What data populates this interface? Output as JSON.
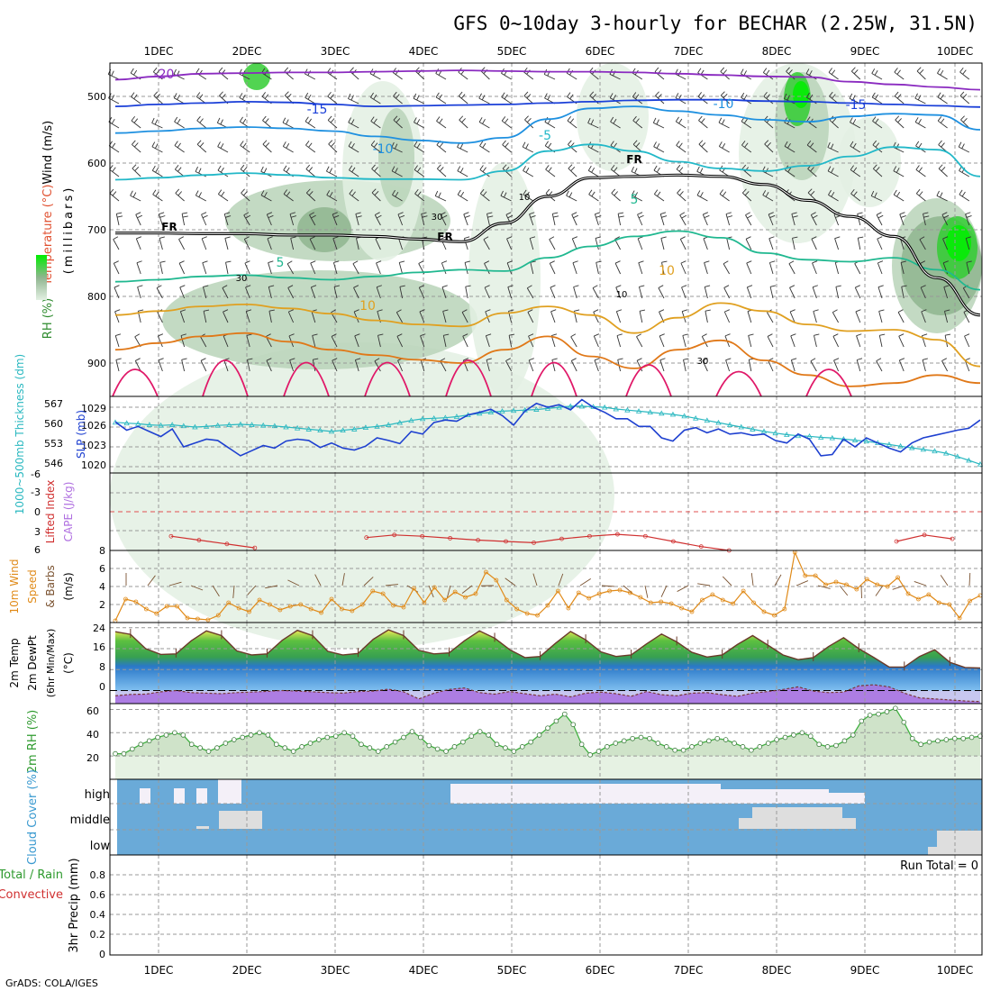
{
  "title": "GFS 0~10day 3-hourly for BECHAR (2.25W, 31.5N)",
  "footer": "GrADS: COLA/IGES",
  "colors": {
    "frame": "#000000",
    "grid": "#999999",
    "rh_light": "#e3f0e3",
    "rh_mid": "#b9d3b9",
    "rh_dark": "#8fb58f",
    "rh_green": "#33cc33",
    "rh_bright": "#00ee00",
    "slp": "#1e40d0",
    "thickness": "#2ab8c0",
    "lifted": "#d03030",
    "wind": "#e08a18",
    "barb": "#7a5230",
    "temp_fill": "#4caa3c",
    "temp_line": "#6b3a2a",
    "dew": "#a870e0",
    "rh2m": "#40b040",
    "cloud_blue": "#6aaad8",
    "cloud_white": "#f4f0f8",
    "cloud_gray": "#dedede",
    "contour_colors": {
      "-20": "#8a2ac0",
      "-15": "#1a3fd8",
      "-10": "#1e90e0",
      "-5": "#22b8c8",
      "5": "#20b890",
      "10": "#e0a020",
      "15": "#e07818",
      "20": "#e01868"
    }
  },
  "x_axis": {
    "top_dates": [
      "1DEC",
      "2DEC",
      "3DEC",
      "4DEC",
      "5DEC",
      "6DEC",
      "7DEC",
      "8DEC",
      "9DEC",
      "10DEC"
    ],
    "bottom_dates": [
      "1DEC",
      "2DEC",
      "3DEC",
      "4DEC",
      "5DEC",
      "6DEC",
      "7DEC",
      "8DEC",
      "9DEC",
      "10DEC"
    ]
  },
  "chart_data": [
    {
      "type": "heatmap",
      "name": "upper-air",
      "ylabel_parts": [
        "RH (%)",
        "Temperature (°C)",
        "Wind (m/s)"
      ],
      "ylabel_unit": "(millibars)",
      "yticks": [
        500,
        600,
        700,
        800,
        900
      ],
      "ylim": [
        950,
        450
      ],
      "freezing_label": "FR",
      "contour_labels": [
        "-20",
        "-15",
        "-15",
        "-10",
        "-10",
        "-5",
        "5",
        "5",
        "10",
        "10",
        "10",
        "30",
        "30",
        "10",
        "30"
      ],
      "isotherms": [
        {
          "level": -20,
          "p": [
            475,
            470,
            466,
            465,
            464,
            464,
            463,
            462,
            461,
            462,
            463,
            463,
            464,
            466,
            468,
            470,
            471,
            478,
            482,
            486,
            490
          ]
        },
        {
          "level": -15,
          "p": [
            515,
            512,
            510,
            508,
            509,
            512,
            515,
            514,
            513,
            512,
            510,
            508,
            506,
            505,
            505,
            507,
            508,
            510,
            512,
            514,
            516
          ]
        },
        {
          "level": -10,
          "p": [
            555,
            552,
            548,
            546,
            548,
            552,
            560,
            566,
            570,
            562,
            534,
            518,
            515,
            522,
            528,
            535,
            538,
            530,
            526,
            528,
            550
          ]
        },
        {
          "level": -5,
          "p": [
            625,
            622,
            618,
            615,
            618,
            622,
            624,
            624,
            625,
            612,
            582,
            572,
            582,
            598,
            608,
            612,
            604,
            590,
            576,
            580,
            620
          ]
        },
        {
          "level": 5,
          "p": [
            778,
            775,
            770,
            768,
            772,
            775,
            770,
            764,
            760,
            762,
            742,
            725,
            710,
            702,
            712,
            735,
            745,
            748,
            742,
            760,
            790
          ]
        },
        {
          "level": 10,
          "p": [
            828,
            822,
            815,
            812,
            818,
            826,
            836,
            842,
            845,
            825,
            815,
            828,
            855,
            832,
            810,
            822,
            842,
            852,
            850,
            865,
            905
          ]
        },
        {
          "level": 15,
          "p": [
            880,
            870,
            860,
            855,
            868,
            880,
            888,
            895,
            900,
            880,
            860,
            890,
            908,
            880,
            866,
            896,
            918,
            935,
            930,
            918,
            930
          ]
        }
      ],
      "freezing_level": [
        705,
        705,
        706,
        706,
        708,
        708,
        710,
        714,
        718,
        690,
        650,
        622,
        620,
        618,
        620,
        632,
        656,
        680,
        710,
        772,
        828
      ]
    },
    {
      "type": "line",
      "name": "slp-thickness",
      "ylabel_left": "1000~500mb Thickness (dm)",
      "ylabel_right": "SLP (mb)",
      "left_ticks": [
        "567",
        "560",
        "553",
        "546"
      ],
      "right_ticks": [
        "1029",
        "1026",
        "1023",
        "1020"
      ],
      "series": [
        {
          "name": "SLP (mb)",
          "axis": "SLP",
          "ylim": [
            1018.5,
            1030.5
          ],
          "values": [
            1026.5,
            1025.2,
            1025.8,
            1025.0,
            1024.2,
            1025.4,
            1022.6,
            1023.2,
            1023.8,
            1023.6,
            1022.4,
            1021.2,
            1022.0,
            1022.8,
            1022.4,
            1023.5,
            1023.8,
            1023.6,
            1022.5,
            1023.2,
            1022.4,
            1022.1,
            1022.7,
            1024.0,
            1023.6,
            1023.1,
            1025.0,
            1024.6,
            1026.4,
            1026.8,
            1026.6,
            1027.6,
            1028.0,
            1028.5,
            1027.5,
            1026.0,
            1028.2,
            1029.4,
            1028.8,
            1029.2,
            1028.4,
            1030.0,
            1028.8,
            1028.0,
            1027.0,
            1027.0,
            1025.8,
            1025.8,
            1024.0,
            1023.5,
            1025.2,
            1025.6,
            1024.8,
            1025.4,
            1024.6,
            1024.8,
            1024.4,
            1024.6,
            1023.6,
            1023.2,
            1024.6,
            1023.8,
            1021.2,
            1021.4,
            1023.8,
            1022.6,
            1024.0,
            1023.2,
            1022.4,
            1021.8,
            1023.2,
            1024.0,
            1024.4,
            1024.8,
            1025.2,
            1025.5,
            1026.8
          ]
        },
        {
          "name": "Thickness (dm)",
          "axis": "Thickness",
          "ylim": [
            542,
            570
          ],
          "values": [
            560.5,
            560.2,
            560.0,
            559.6,
            559.4,
            559.6,
            559.2,
            558.8,
            559.0,
            559.4,
            559.6,
            559.8,
            559.6,
            559.4,
            559.2,
            558.8,
            558.4,
            558.0,
            557.6,
            557.2,
            557.6,
            558.0,
            558.6,
            559.0,
            559.6,
            560.4,
            561.2,
            561.8,
            562.0,
            562.2,
            562.6,
            563.2,
            563.8,
            564.2,
            564.6,
            564.8,
            565.0,
            565.2,
            565.6,
            566.0,
            566.4,
            566.4,
            566.2,
            566.0,
            565.4,
            565.0,
            564.6,
            564.2,
            563.8,
            563.4,
            562.8,
            562.0,
            561.2,
            560.4,
            559.6,
            558.8,
            558.0,
            557.2,
            556.6,
            556.0,
            555.6,
            555.4,
            555.0,
            554.8,
            554.4,
            554.0,
            553.6,
            553.0,
            552.4,
            551.8,
            551.2,
            550.6,
            550.0,
            549.2,
            548.0,
            546.6,
            545.2
          ]
        }
      ]
    },
    {
      "type": "line",
      "name": "lifted-index-cape",
      "ylabel_parts": [
        "Lifted Index",
        "CAPE (J/kg)"
      ],
      "yticks": [
        "-6",
        "-3",
        "0",
        "3",
        "6"
      ],
      "ylim": [
        6,
        -6
      ],
      "series": [
        {
          "name": "Lifted Index",
          "values": [
            null,
            null,
            3.8,
            4.4,
            5.0,
            5.6,
            null,
            null,
            null,
            4.0,
            3.6,
            3.8,
            4.1,
            4.4,
            4.6,
            4.8,
            4.2,
            3.8,
            3.5,
            3.8,
            4.6,
            5.4,
            6.0,
            null,
            null,
            null,
            null,
            null,
            4.6,
            3.6,
            4.2,
            null
          ]
        }
      ]
    },
    {
      "type": "line",
      "name": "wind10m",
      "ylabel_parts": [
        "10m Wind",
        "Speed",
        "& Barbs",
        "(m/s)"
      ],
      "yticks": [
        "8",
        "6",
        "4",
        "2"
      ],
      "ylim": [
        0,
        8
      ],
      "series": [
        {
          "name": "10m Wind Speed",
          "values": [
            0.2,
            2.6,
            2.3,
            1.5,
            1.0,
            1.8,
            1.8,
            0.5,
            0.4,
            0.3,
            0.8,
            2.2,
            1.6,
            1.2,
            2.5,
            2.0,
            1.4,
            1.8,
            2.0,
            1.5,
            1.1,
            2.6,
            1.5,
            1.3,
            2.0,
            3.5,
            3.2,
            1.9,
            1.7,
            3.8,
            2.2,
            3.9,
            2.5,
            3.4,
            2.8,
            3.2,
            5.6,
            4.7,
            2.5,
            1.5,
            1.0,
            0.8,
            1.9,
            3.5,
            1.6,
            3.3,
            2.7,
            3.2,
            3.5,
            3.6,
            3.3,
            2.8,
            2.2,
            2.3,
            2.1,
            1.6,
            1.2,
            2.5,
            3.1,
            2.5,
            2.1,
            3.5,
            2.2,
            1.2,
            0.8,
            1.5,
            7.8,
            5.2,
            5.2,
            4.2,
            4.5,
            4.2,
            3.7,
            4.8,
            4.2,
            4.0,
            5.0,
            3.2,
            2.6,
            3.1,
            2.2,
            2.0,
            0.5,
            2.4,
            3.0
          ]
        }
      ]
    },
    {
      "type": "area",
      "name": "temperature",
      "ylabel_parts": [
        "2m Temp",
        "2m DewPt",
        "(6hr Min/Max)",
        "(°C)"
      ],
      "yticks": [
        "24",
        "16",
        "8",
        "0"
      ],
      "ylim": [
        -5,
        26
      ],
      "series": [
        {
          "name": "2m Temp",
          "values": [
            22.5,
            21.5,
            16.0,
            13.8,
            14.0,
            19.0,
            22.8,
            21.0,
            15.2,
            13.6,
            14.0,
            19.2,
            23.0,
            21.0,
            15.0,
            13.6,
            14.2,
            19.6,
            23.2,
            21.0,
            15.4,
            14.0,
            14.4,
            19.0,
            22.8,
            20.0,
            15.6,
            12.6,
            13.0,
            18.0,
            22.6,
            19.4,
            14.8,
            13.0,
            13.6,
            17.8,
            21.6,
            18.6,
            14.6,
            12.8,
            13.6,
            17.6,
            21.0,
            17.4,
            13.6,
            11.8,
            12.6,
            16.8,
            20.2,
            16.0,
            12.6,
            9.0,
            9.0,
            13.0,
            15.6,
            10.8,
            8.8,
            8.6
          ]
        },
        {
          "name": "2m DewPt",
          "values": [
            -2.0,
            -1.5,
            -1.4,
            -0.5,
            0.0,
            -0.8,
            -1.0,
            -1.2,
            -0.8,
            -0.6,
            -0.3,
            0.0,
            -0.2,
            -0.5,
            -0.8,
            -1.0,
            -0.4,
            -0.2,
            0.5,
            -0.5,
            -3.2,
            -1.0,
            0.4,
            1.0,
            -0.8,
            -1.4,
            -0.4,
            -1.2,
            -2.0,
            -1.4,
            -2.4,
            -1.0,
            -0.6,
            -1.2,
            -2.2,
            -0.4,
            -1.6,
            -2.0,
            -1.0,
            -0.8,
            -1.6,
            -2.2,
            -1.0,
            -0.4,
            0.4,
            1.4,
            -0.2,
            -0.8,
            -0.6,
            1.8,
            2.2,
            1.4,
            -1.0,
            -2.8,
            -3.2,
            -3.6,
            -4.0,
            -4.2
          ]
        }
      ]
    },
    {
      "type": "area",
      "name": "rh2m",
      "ylabel": "2m RH (%)",
      "yticks": [
        "60",
        "40",
        "20"
      ],
      "ylim": [
        0,
        65
      ],
      "series": [
        {
          "name": "2m RH",
          "values": [
            22,
            22,
            26,
            30,
            33,
            36,
            38,
            40,
            38,
            30,
            27,
            24,
            27,
            31,
            34,
            36,
            38,
            40,
            38,
            30,
            27,
            24,
            28,
            31,
            34,
            36,
            37,
            40,
            37,
            30,
            27,
            24,
            28,
            32,
            36,
            41,
            36,
            29,
            26,
            24,
            28,
            32,
            37,
            41,
            38,
            30,
            27,
            24,
            28,
            32,
            38,
            44,
            50,
            56,
            47,
            30,
            21,
            24,
            28,
            31,
            33,
            35,
            36,
            35,
            31,
            28,
            25,
            25,
            28,
            31,
            33,
            35,
            34,
            31,
            28,
            25,
            28,
            31,
            34,
            36,
            38,
            40,
            37,
            30,
            28,
            29,
            33,
            38,
            50,
            55,
            56,
            58,
            61,
            49,
            35,
            30,
            32,
            33,
            34,
            35,
            35,
            36,
            37
          ]
        }
      ]
    },
    {
      "type": "heatmap",
      "name": "cloud-cover",
      "ylabel": "Cloud Cover (%)",
      "rows": [
        "high",
        "middle",
        "low"
      ]
    },
    {
      "type": "bar",
      "name": "precip",
      "ylabel_parts": [
        "Total / Rain",
        "Convective",
        "3hr Precip (mm)"
      ],
      "yticks": [
        "0.8",
        "0.6",
        "0.4",
        "0.2",
        "0"
      ],
      "ylim": [
        0,
        1
      ],
      "run_total": "Run Total = 0",
      "values": []
    }
  ]
}
